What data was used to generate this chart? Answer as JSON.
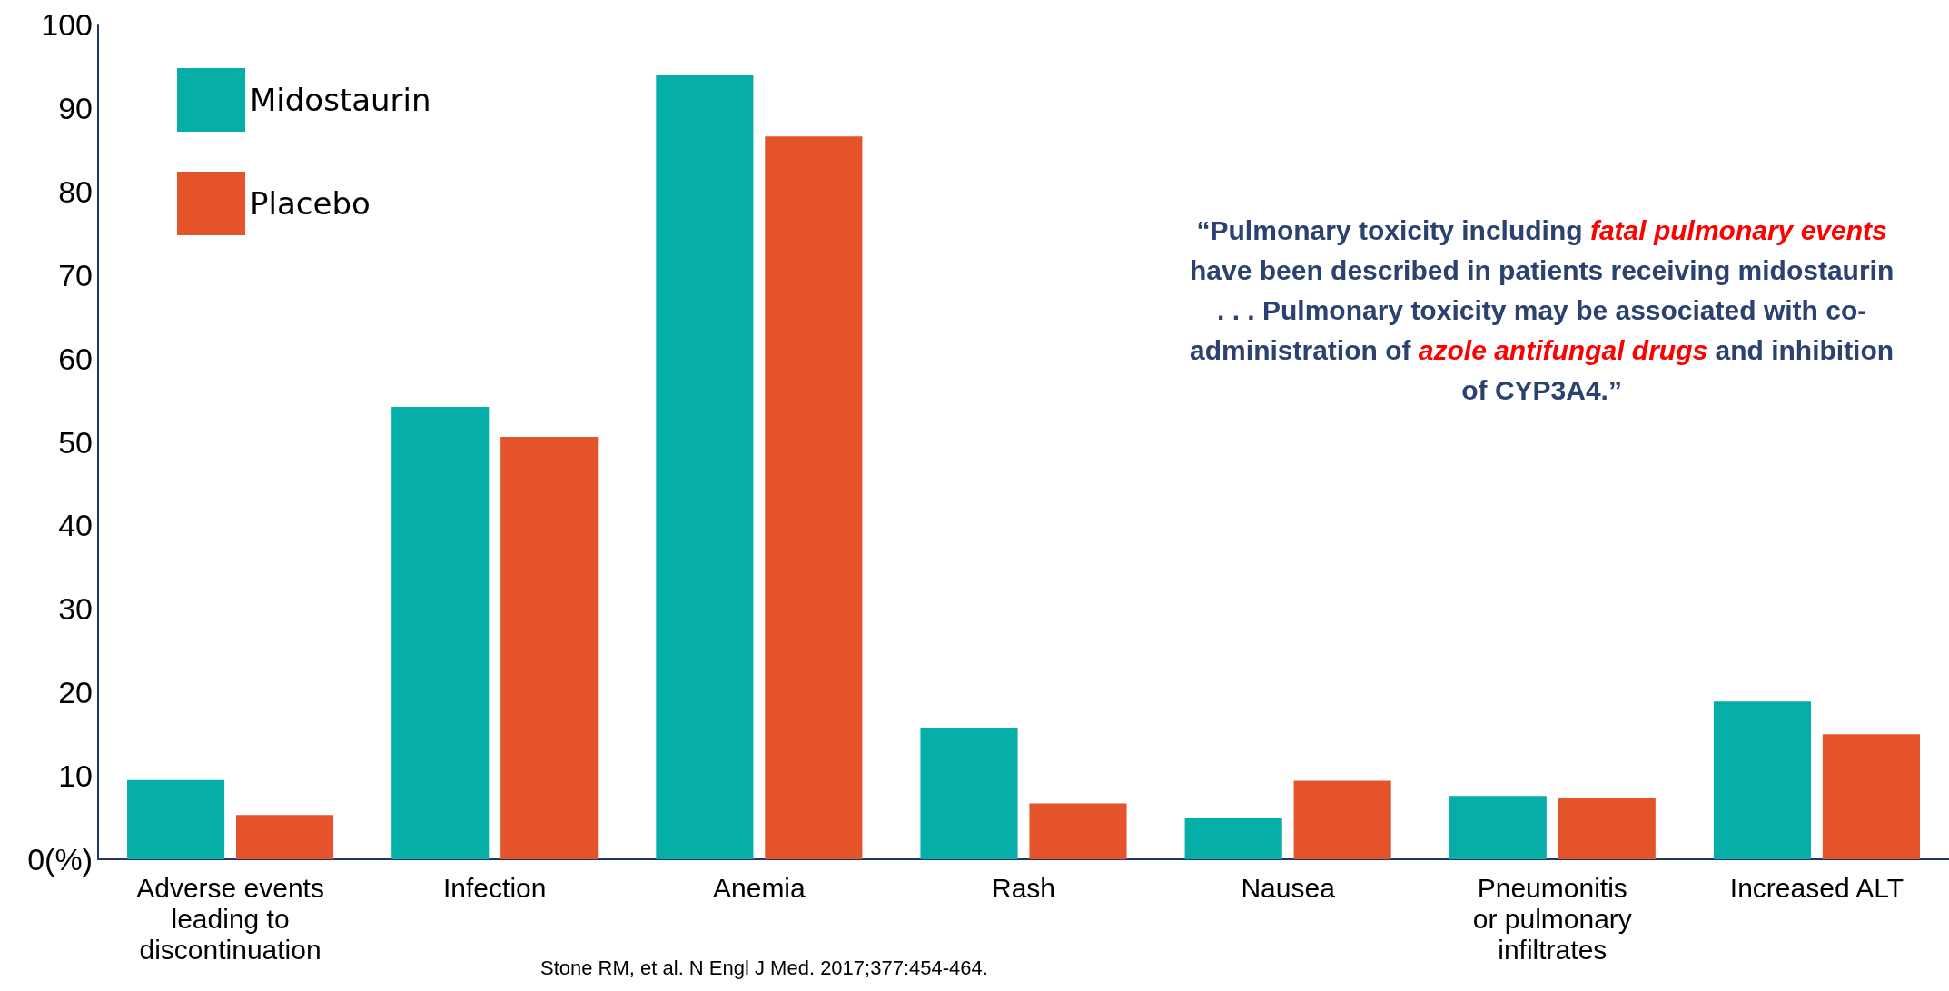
{
  "chart_data": {
    "type": "bar",
    "categories": [
      "Adverse events\nleading to\ndiscontinuation",
      "Infection",
      "Anemia",
      "Rash",
      "Nausea",
      "Pneumonitis\nor pulmonary\ninfiltrates",
      "Increased ALT"
    ],
    "series": [
      {
        "name": "Midostaurin",
        "color": "#05aea6",
        "values": [
          9.5,
          54.2,
          93.9,
          15.7,
          5.0,
          7.6,
          18.9
        ]
      },
      {
        "name": "Placebo",
        "color": "#e4532a",
        "values": [
          5.3,
          50.6,
          86.6,
          6.7,
          9.4,
          7.3,
          15.0
        ]
      }
    ],
    "ylim": [
      0,
      100
    ],
    "yticks": [
      {
        "value": 0,
        "label": "0(%)"
      },
      10,
      20,
      30,
      40,
      50,
      60,
      70,
      80,
      90,
      100
    ],
    "grid": false,
    "legend": "top left",
    "annotations": [
      "“Pulmonary toxicity including ",
      "fatal pulmonary events",
      "\nhave been described in patients receiving midostaurin\n. . . Pulmonary toxicity may be associated with co-\nadministration of ",
      "azole antifungal drugs",
      " and inhibition\nof CYP3A4.”",
      "Stone RM, et al. N Engl J Med. 2017;377:454-464."
    ]
  }
}
